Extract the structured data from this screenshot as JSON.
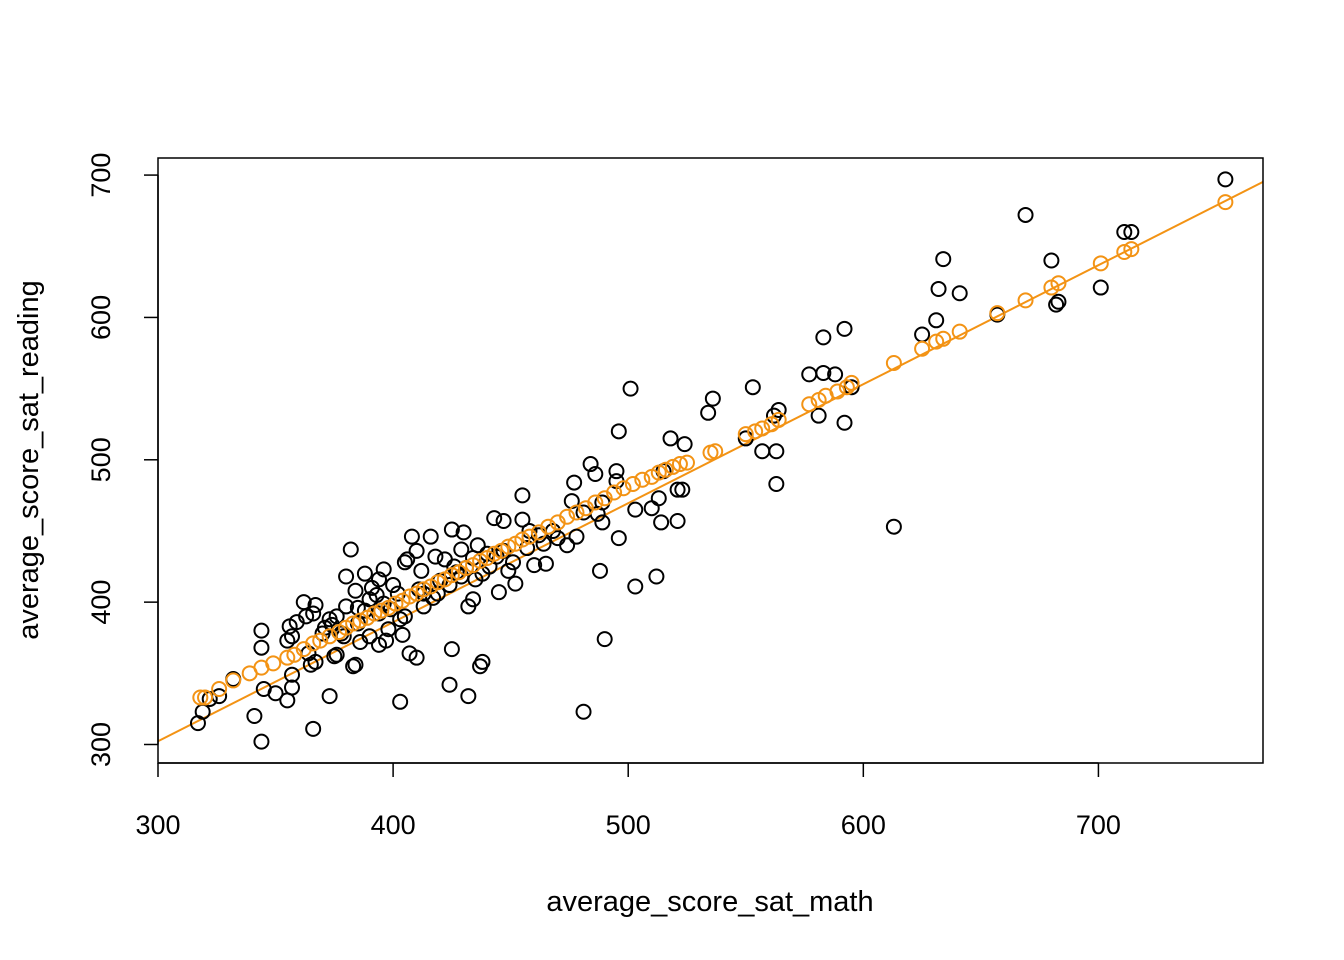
{
  "chart_data": {
    "type": "scatter",
    "xlabel": "average_score_sat_math",
    "ylabel": "average_score_sat_reading",
    "xlim": [
      300,
      770
    ],
    "ylim": [
      287,
      712
    ],
    "x_ticks": [
      300,
      400,
      500,
      600,
      700
    ],
    "y_ticks": [
      300,
      400,
      500,
      600,
      700
    ],
    "grid": false,
    "colors": {
      "observed": "#000000",
      "fitted": "#f39314",
      "fit_line": "#f39314"
    },
    "fit_line": {
      "intercept": 51.5,
      "slope": 0.836
    },
    "series": [
      {
        "name": "",
        "color": "#000000",
        "points": [
          [
            754,
            697
          ],
          [
            669,
            672
          ],
          [
            711,
            660
          ],
          [
            714,
            660
          ],
          [
            680,
            640
          ],
          [
            634,
            641
          ],
          [
            641,
            617
          ],
          [
            632,
            620
          ],
          [
            701,
            621
          ],
          [
            682,
            609
          ],
          [
            683,
            611
          ],
          [
            657,
            602
          ],
          [
            631,
            598
          ],
          [
            625,
            588
          ],
          [
            592,
            592
          ],
          [
            583,
            586
          ],
          [
            501,
            550
          ],
          [
            553,
            551
          ],
          [
            536,
            543
          ],
          [
            577,
            560
          ],
          [
            583,
            561
          ],
          [
            588,
            560
          ],
          [
            595,
            551
          ],
          [
            534,
            533
          ],
          [
            562,
            531
          ],
          [
            564,
            535
          ],
          [
            581,
            531
          ],
          [
            592,
            526
          ],
          [
            496,
            520
          ],
          [
            518,
            515
          ],
          [
            524,
            511
          ],
          [
            550,
            515
          ],
          [
            557,
            506
          ],
          [
            563,
            506
          ],
          [
            563,
            483
          ],
          [
            613,
            453
          ],
          [
            521,
            479
          ],
          [
            523,
            479
          ],
          [
            484,
            497
          ],
          [
            495,
            492
          ],
          [
            495,
            485
          ],
          [
            477,
            484
          ],
          [
            486,
            490
          ],
          [
            489,
            470
          ],
          [
            476,
            471
          ],
          [
            487,
            462
          ],
          [
            489,
            456
          ],
          [
            496,
            445
          ],
          [
            503,
            465
          ],
          [
            510,
            466
          ],
          [
            513,
            473
          ],
          [
            515,
            492
          ],
          [
            514,
            456
          ],
          [
            521,
            457
          ],
          [
            512,
            418
          ],
          [
            488,
            422
          ],
          [
            503,
            411
          ],
          [
            490,
            374
          ],
          [
            481,
            323
          ],
          [
            455,
            475
          ],
          [
            468,
            450
          ],
          [
            462,
            447
          ],
          [
            457,
            438
          ],
          [
            465,
            427
          ],
          [
            460,
            426
          ],
          [
            443,
            459
          ],
          [
            447,
            457
          ],
          [
            455,
            458
          ],
          [
            451,
            428
          ],
          [
            445,
            407
          ],
          [
            436,
            440
          ],
          [
            429,
            437
          ],
          [
            425,
            451
          ],
          [
            430,
            449
          ],
          [
            432,
            397
          ],
          [
            434,
            402
          ],
          [
            425,
            367
          ],
          [
            438,
            358
          ],
          [
            437,
            355
          ],
          [
            432,
            334
          ],
          [
            424,
            342
          ],
          [
            416,
            446
          ],
          [
            408,
            446
          ],
          [
            410,
            436
          ],
          [
            412,
            422
          ],
          [
            406,
            430
          ],
          [
            413,
            406
          ],
          [
            419,
            406
          ],
          [
            413,
            397
          ],
          [
            405,
            390
          ],
          [
            403,
            388
          ],
          [
            404,
            377
          ],
          [
            407,
            364
          ],
          [
            410,
            361
          ],
          [
            403,
            330
          ],
          [
            382,
            437
          ],
          [
            380,
            418
          ],
          [
            388,
            420
          ],
          [
            394,
            416
          ],
          [
            396,
            423
          ],
          [
            384,
            408
          ],
          [
            391,
            410
          ],
          [
            380,
            397
          ],
          [
            376,
            390
          ],
          [
            385,
            396
          ],
          [
            390,
            402
          ],
          [
            396,
            399
          ],
          [
            385,
            385
          ],
          [
            390,
            376
          ],
          [
            394,
            370
          ],
          [
            397,
            373
          ],
          [
            379,
            376
          ],
          [
            373,
            388
          ],
          [
            367,
            398
          ],
          [
            362,
            400
          ],
          [
            363,
            390
          ],
          [
            356,
            383
          ],
          [
            359,
            386
          ],
          [
            366,
            392
          ],
          [
            370,
            378
          ],
          [
            355,
            373
          ],
          [
            357,
            376
          ],
          [
            364,
            364
          ],
          [
            367,
            358
          ],
          [
            365,
            356
          ],
          [
            375,
            362
          ],
          [
            376,
            363
          ],
          [
            383,
            355
          ],
          [
            384,
            356
          ],
          [
            373,
            334
          ],
          [
            366,
            311
          ],
          [
            357,
            349
          ],
          [
            357,
            340
          ],
          [
            355,
            331
          ],
          [
            350,
            336
          ],
          [
            345,
            339
          ],
          [
            344,
            368
          ],
          [
            344,
            380
          ],
          [
            344,
            302
          ],
          [
            341,
            320
          ],
          [
            326,
            334
          ],
          [
            332,
            346
          ],
          [
            319,
            323
          ],
          [
            317,
            315
          ],
          [
            322,
            332
          ],
          [
            405,
            428
          ],
          [
            418,
            432
          ],
          [
            422,
            430
          ],
          [
            400,
            412
          ],
          [
            426,
            425
          ],
          [
            429,
            418
          ],
          [
            440,
            434
          ],
          [
            444,
            432
          ],
          [
            449,
            422
          ],
          [
            452,
            413
          ],
          [
            458,
            450
          ],
          [
            464,
            441
          ],
          [
            470,
            445
          ],
          [
            474,
            440
          ],
          [
            478,
            446
          ],
          [
            481,
            463
          ],
          [
            447,
            436
          ],
          [
            441,
            425
          ],
          [
            435,
            416
          ],
          [
            388,
            394
          ],
          [
            393,
            405
          ],
          [
            398,
            381
          ],
          [
            386,
            372
          ],
          [
            378,
            378
          ],
          [
            374,
            384
          ],
          [
            371,
            382
          ],
          [
            394,
            392
          ],
          [
            399,
            395
          ],
          [
            402,
            406
          ],
          [
            411,
            409
          ],
          [
            417,
            403
          ],
          [
            420,
            415
          ],
          [
            424,
            412
          ],
          [
            427,
            421
          ],
          [
            431,
            424
          ],
          [
            434,
            431
          ],
          [
            438,
            420
          ]
        ]
      },
      {
        "name": "",
        "color": "#f39314",
        "points": [
          [
            318,
            333
          ],
          [
            320,
            333
          ],
          [
            326,
            339
          ],
          [
            332,
            345
          ],
          [
            339,
            350
          ],
          [
            344,
            354
          ],
          [
            349,
            357
          ],
          [
            355,
            361
          ],
          [
            358,
            363
          ],
          [
            362,
            367
          ],
          [
            366,
            371
          ],
          [
            369,
            373
          ],
          [
            373,
            376
          ],
          [
            377,
            379
          ],
          [
            380,
            382
          ],
          [
            383,
            385
          ],
          [
            386,
            387
          ],
          [
            389,
            389
          ],
          [
            392,
            392
          ],
          [
            395,
            394
          ],
          [
            398,
            396
          ],
          [
            401,
            399
          ],
          [
            404,
            401
          ],
          [
            407,
            404
          ],
          [
            410,
            406
          ],
          [
            413,
            409
          ],
          [
            416,
            411
          ],
          [
            419,
            414
          ],
          [
            422,
            416
          ],
          [
            425,
            419
          ],
          [
            428,
            421
          ],
          [
            431,
            424
          ],
          [
            434,
            426
          ],
          [
            437,
            429
          ],
          [
            440,
            431
          ],
          [
            443,
            434
          ],
          [
            446,
            436
          ],
          [
            449,
            439
          ],
          [
            452,
            441
          ],
          [
            455,
            444
          ],
          [
            458,
            446
          ],
          [
            462,
            449
          ],
          [
            466,
            453
          ],
          [
            470,
            456
          ],
          [
            474,
            460
          ],
          [
            478,
            463
          ],
          [
            482,
            466
          ],
          [
            486,
            470
          ],
          [
            490,
            473
          ],
          [
            494,
            477
          ],
          [
            498,
            480
          ],
          [
            502,
            483
          ],
          [
            506,
            486
          ],
          [
            510,
            488
          ],
          [
            513,
            491
          ],
          [
            516,
            493
          ],
          [
            519,
            495
          ],
          [
            522,
            497
          ],
          [
            525,
            498
          ],
          [
            535,
            505
          ],
          [
            537,
            506
          ],
          [
            550,
            518
          ],
          [
            554,
            520
          ],
          [
            557,
            522
          ],
          [
            561,
            525
          ],
          [
            564,
            528
          ],
          [
            577,
            539
          ],
          [
            581,
            542
          ],
          [
            584,
            545
          ],
          [
            589,
            548
          ],
          [
            593,
            551
          ],
          [
            595,
            554
          ],
          [
            613,
            568
          ],
          [
            625,
            578
          ],
          [
            631,
            583
          ],
          [
            634,
            585
          ],
          [
            641,
            590
          ],
          [
            657,
            603
          ],
          [
            669,
            612
          ],
          [
            680,
            621
          ],
          [
            683,
            624
          ],
          [
            701,
            638
          ],
          [
            711,
            646
          ],
          [
            714,
            648
          ],
          [
            754,
            681
          ]
        ]
      }
    ]
  }
}
